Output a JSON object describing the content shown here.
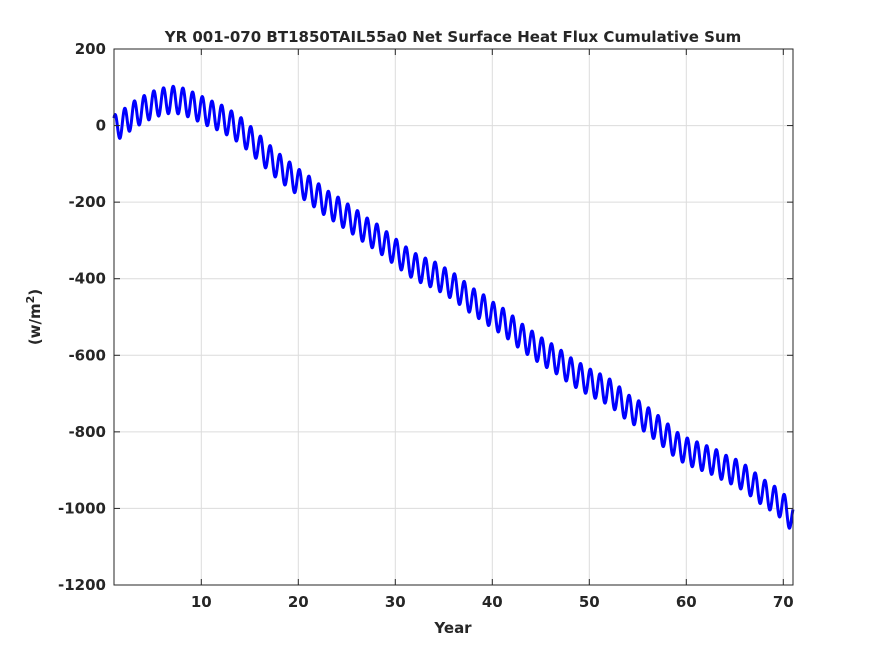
{
  "chart_data": {
    "type": "line",
    "title": "YR 001-070 BT1850TAIL55a0 Net Surface Heat Flux  Cumulative Sum",
    "xlabel": "Year",
    "ylabel_base": "(w/m",
    "ylabel_sup": "2",
    "ylabel_close": ")",
    "xlim": [
      1,
      71
    ],
    "ylim": [
      -1200,
      200
    ],
    "xticks": [
      10,
      20,
      30,
      40,
      50,
      60,
      70
    ],
    "yticks": [
      200,
      0,
      -200,
      -400,
      -600,
      -800,
      -1000,
      -1200
    ],
    "xtick_labels": [
      "10",
      "20",
      "30",
      "40",
      "50",
      "60",
      "70"
    ],
    "ytick_labels": [
      "200",
      "0",
      "-200",
      "-400",
      "-600",
      "-800",
      "-1000",
      "-1200"
    ],
    "grid": true,
    "line_color": "#0000ff",
    "seasonal_amplitude": 35,
    "series": [
      {
        "trend_points": [
          [
            1,
            -8
          ],
          [
            2,
            8
          ],
          [
            3,
            28
          ],
          [
            4,
            42
          ],
          [
            5,
            55
          ],
          [
            6,
            63
          ],
          [
            7,
            68
          ],
          [
            8,
            64
          ],
          [
            9,
            54
          ],
          [
            10,
            42
          ],
          [
            11,
            30
          ],
          [
            12,
            20
          ],
          [
            13,
            5
          ],
          [
            14,
            -12
          ],
          [
            15,
            -35
          ],
          [
            16,
            -60
          ],
          [
            17,
            -85
          ],
          [
            18,
            -108
          ],
          [
            19,
            -128
          ],
          [
            20,
            -148
          ],
          [
            21,
            -165
          ],
          [
            22,
            -185
          ],
          [
            23,
            -205
          ],
          [
            24,
            -220
          ],
          [
            25,
            -238
          ],
          [
            26,
            -255
          ],
          [
            27,
            -275
          ],
          [
            28,
            -290
          ],
          [
            29,
            -310
          ],
          [
            30,
            -330
          ],
          [
            31,
            -350
          ],
          [
            32,
            -368
          ],
          [
            33,
            -380
          ],
          [
            34,
            -390
          ],
          [
            35,
            -405
          ],
          [
            36,
            -420
          ],
          [
            37,
            -440
          ],
          [
            38,
            -460
          ],
          [
            39,
            -475
          ],
          [
            40,
            -495
          ],
          [
            41,
            -510
          ],
          [
            42,
            -530
          ],
          [
            43,
            -552
          ],
          [
            44,
            -570
          ],
          [
            45,
            -588
          ],
          [
            46,
            -603
          ],
          [
            47,
            -620
          ],
          [
            48,
            -640
          ],
          [
            49,
            -655
          ],
          [
            50,
            -670
          ],
          [
            51,
            -682
          ],
          [
            52,
            -695
          ],
          [
            53,
            -715
          ],
          [
            54,
            -738
          ],
          [
            55,
            -752
          ],
          [
            56,
            -770
          ],
          [
            57,
            -790
          ],
          [
            58,
            -812
          ],
          [
            59,
            -835
          ],
          [
            60,
            -850
          ],
          [
            61,
            -860
          ],
          [
            62,
            -870
          ],
          [
            63,
            -880
          ],
          [
            64,
            -895
          ],
          [
            65,
            -905
          ],
          [
            66,
            -920
          ],
          [
            67,
            -940
          ],
          [
            68,
            -960
          ],
          [
            69,
            -975
          ],
          [
            70,
            -995
          ],
          [
            71,
            -1030
          ]
        ]
      }
    ]
  }
}
